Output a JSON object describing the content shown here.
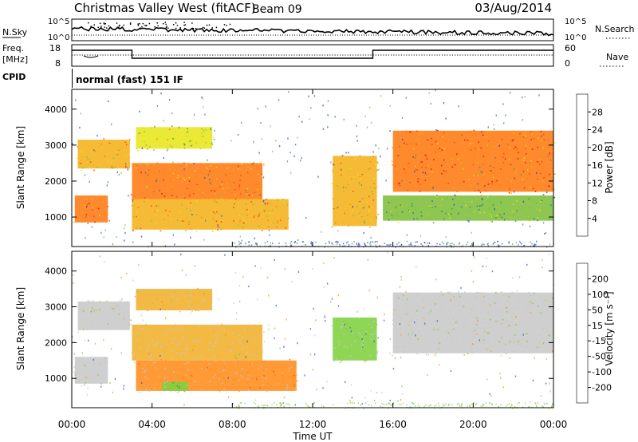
{
  "header": {
    "station": "Christmas Valley West (fitACF)",
    "beam": "Beam 09",
    "date": "03/Aug/2014"
  },
  "sky_panel": {
    "left_label": "N.Sky",
    "right_label": "N.Search",
    "ticks": [
      "10^5",
      "10^0"
    ]
  },
  "freq_panel": {
    "left_label_1": "Freq.",
    "left_label_2": "[MHz]",
    "right_label": "Nave",
    "left_ticks": [
      "18",
      "8"
    ],
    "right_ticks": [
      "60",
      "0"
    ]
  },
  "cpid": {
    "label": "CPID",
    "mode": "normal (fast) 151 IF"
  },
  "colors": {
    "power_scale": [
      "#1a2ee6",
      "#2f5fb0",
      "#3f8a5c",
      "#7dbf3a",
      "#e6e61a",
      "#f5b21a",
      "#ff7a10",
      "#ff3c10",
      "#e60a0a"
    ],
    "velocity_scale": [
      "#e60a0a",
      "#ff4a10",
      "#ff8c1a",
      "#f0b02a",
      "#c8c8c8",
      "#7fd040",
      "#3c9a5a",
      "#3050b8",
      "#1a28c8"
    ]
  },
  "chart_data": [
    {
      "type": "heatmap",
      "name": "Power",
      "ylabel": "Slant Range [km]",
      "yticks": [
        1000,
        2000,
        3000,
        4000
      ],
      "ylim": [
        180,
        4550
      ],
      "xlim": [
        0,
        24
      ],
      "colorbar_label": "Power [dB]",
      "colorbar_ticks": [
        "28",
        "24",
        "20",
        "16",
        "12",
        "8",
        "4"
      ],
      "features": [
        {
          "x": [
            0.15,
            1.8
          ],
          "y": [
            850,
            1600
          ],
          "dB": 22
        },
        {
          "x": [
            0.3,
            2.9
          ],
          "y": [
            2350,
            3150
          ],
          "dB": 20
        },
        {
          "x": [
            3.0,
            9.5
          ],
          "y": [
            1500,
            2500
          ],
          "dB": 22
        },
        {
          "x": [
            3.2,
            7.0
          ],
          "y": [
            2900,
            3500
          ],
          "dB": 16
        },
        {
          "x": [
            3.0,
            10.8
          ],
          "y": [
            650,
            1500
          ],
          "dB": 20
        },
        {
          "x": [
            13.0,
            15.2
          ],
          "y": [
            750,
            2700
          ],
          "dB": 18
        },
        {
          "x": [
            16.0,
            24.0
          ],
          "y": [
            1700,
            3400
          ],
          "dB": 24
        },
        {
          "x": [
            15.5,
            24.0
          ],
          "y": [
            900,
            1600
          ],
          "dB": 12
        }
      ]
    },
    {
      "type": "heatmap",
      "name": "Velocity",
      "ylabel": "Slant Range [km]",
      "yticks": [
        1000,
        2000,
        3000,
        4000
      ],
      "ylim": [
        180,
        4550
      ],
      "xlim": [
        0,
        24
      ],
      "xlabel": "Time UT",
      "xticks": [
        "00:00",
        "04:00",
        "08:00",
        "12:00",
        "16:00",
        "20:00",
        "00:00"
      ],
      "colorbar_label": "Velocity [m s⁻¹]",
      "colorbar_ticks": [
        "200",
        "100",
        "50",
        "15",
        "-15",
        "-50",
        "-100",
        "-200"
      ],
      "features": [
        {
          "x": [
            0.15,
            1.8
          ],
          "y": [
            850,
            1600
          ],
          "v": 0
        },
        {
          "x": [
            0.3,
            2.9
          ],
          "y": [
            2350,
            3150
          ],
          "v": 0
        },
        {
          "x": [
            3.0,
            9.5
          ],
          "y": [
            1500,
            2500
          ],
          "v": -15
        },
        {
          "x": [
            3.2,
            7.0
          ],
          "y": [
            2900,
            3500
          ],
          "v": -30
        },
        {
          "x": [
            3.2,
            11.2
          ],
          "y": [
            650,
            1500
          ],
          "v": -80
        },
        {
          "x": [
            4.5,
            5.8
          ],
          "y": [
            650,
            900
          ],
          "v": 40
        },
        {
          "x": [
            13.0,
            15.2
          ],
          "y": [
            1500,
            2700
          ],
          "v": 30
        },
        {
          "x": [
            16.0,
            24.0
          ],
          "y": [
            1700,
            3400
          ],
          "v": 0
        }
      ]
    }
  ]
}
